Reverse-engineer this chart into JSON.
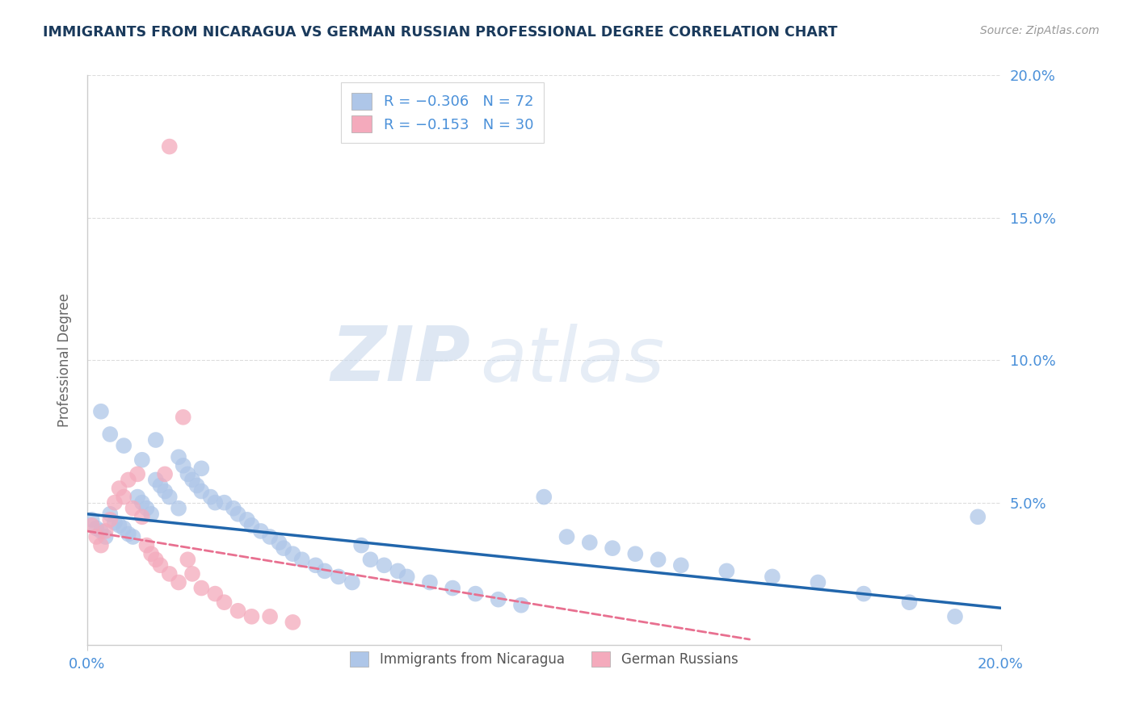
{
  "title": "IMMIGRANTS FROM NICARAGUA VS GERMAN RUSSIAN PROFESSIONAL DEGREE CORRELATION CHART",
  "source": "Source: ZipAtlas.com",
  "ylabel": "Professional Degree",
  "xlim": [
    0.0,
    0.2
  ],
  "ylim": [
    0.0,
    0.2
  ],
  "ytick_vals": [
    0.0,
    0.05,
    0.1,
    0.15,
    0.2
  ],
  "ytick_labels": [
    "",
    "5.0%",
    "10.0%",
    "15.0%",
    "20.0%"
  ],
  "xtick_vals": [
    0.0,
    0.2
  ],
  "xtick_labels": [
    "0.0%",
    "20.0%"
  ],
  "series1_name": "Immigrants from Nicaragua",
  "series2_name": "German Russians",
  "series1_color": "#aec6e8",
  "series2_color": "#f4aabc",
  "series1_line_color": "#2166ac",
  "series2_line_color": "#e87090",
  "title_color": "#1a3a5c",
  "axis_color": "#4a90d9",
  "background_color": "#ffffff",
  "legend1_label": "R = −0.306   N = 72",
  "legend2_label": "R = −0.153   N = 30",
  "watermark_zip": "ZIP",
  "watermark_atlas": "atlas",
  "series1_x": [
    0.001,
    0.002,
    0.003,
    0.004,
    0.005,
    0.006,
    0.007,
    0.008,
    0.009,
    0.01,
    0.011,
    0.012,
    0.013,
    0.014,
    0.015,
    0.016,
    0.017,
    0.018,
    0.02,
    0.021,
    0.022,
    0.023,
    0.024,
    0.025,
    0.027,
    0.028,
    0.03,
    0.032,
    0.033,
    0.035,
    0.036,
    0.038,
    0.04,
    0.042,
    0.043,
    0.045,
    0.047,
    0.05,
    0.052,
    0.055,
    0.058,
    0.06,
    0.062,
    0.065,
    0.068,
    0.07,
    0.075,
    0.08,
    0.085,
    0.09,
    0.095,
    0.1,
    0.105,
    0.11,
    0.115,
    0.12,
    0.125,
    0.13,
    0.14,
    0.15,
    0.16,
    0.17,
    0.18,
    0.19,
    0.195,
    0.003,
    0.005,
    0.008,
    0.012,
    0.015,
    0.02,
    0.025
  ],
  "series1_y": [
    0.044,
    0.041,
    0.04,
    0.038,
    0.046,
    0.043,
    0.042,
    0.041,
    0.039,
    0.038,
    0.052,
    0.05,
    0.048,
    0.046,
    0.058,
    0.056,
    0.054,
    0.052,
    0.048,
    0.063,
    0.06,
    0.058,
    0.056,
    0.054,
    0.052,
    0.05,
    0.05,
    0.048,
    0.046,
    0.044,
    0.042,
    0.04,
    0.038,
    0.036,
    0.034,
    0.032,
    0.03,
    0.028,
    0.026,
    0.024,
    0.022,
    0.035,
    0.03,
    0.028,
    0.026,
    0.024,
    0.022,
    0.02,
    0.018,
    0.016,
    0.014,
    0.052,
    0.038,
    0.036,
    0.034,
    0.032,
    0.03,
    0.028,
    0.026,
    0.024,
    0.022,
    0.018,
    0.015,
    0.01,
    0.045,
    0.082,
    0.074,
    0.07,
    0.065,
    0.072,
    0.066,
    0.062
  ],
  "series2_x": [
    0.001,
    0.002,
    0.003,
    0.004,
    0.005,
    0.006,
    0.007,
    0.008,
    0.009,
    0.01,
    0.011,
    0.012,
    0.013,
    0.014,
    0.015,
    0.016,
    0.017,
    0.018,
    0.02,
    0.021,
    0.022,
    0.023,
    0.025,
    0.028,
    0.03,
    0.033,
    0.036,
    0.04,
    0.045,
    0.018
  ],
  "series2_y": [
    0.042,
    0.038,
    0.035,
    0.04,
    0.044,
    0.05,
    0.055,
    0.052,
    0.058,
    0.048,
    0.06,
    0.045,
    0.035,
    0.032,
    0.03,
    0.028,
    0.06,
    0.025,
    0.022,
    0.08,
    0.03,
    0.025,
    0.02,
    0.018,
    0.015,
    0.012,
    0.01,
    0.01,
    0.008,
    0.175
  ],
  "trendline1_x": [
    0.0,
    0.2
  ],
  "trendline1_y": [
    0.046,
    0.013
  ],
  "trendline2_x": [
    0.0,
    0.145
  ],
  "trendline2_y": [
    0.04,
    0.002
  ]
}
